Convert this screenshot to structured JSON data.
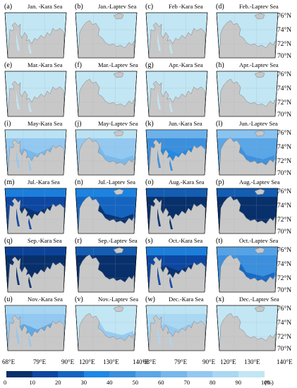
{
  "figure": {
    "panels": [
      {
        "label": "(a)",
        "title": "Jan. -Kara Sea",
        "sea": "kara",
        "ice_level": 1.0
      },
      {
        "label": "(b)",
        "title": "Jan.-Laptev Sea",
        "sea": "laptev",
        "ice_level": 1.0
      },
      {
        "label": "(c)",
        "title": "Feb -Kara Sea",
        "sea": "kara",
        "ice_level": 1.0
      },
      {
        "label": "(d)",
        "title": "Feb.-Laptev Sea",
        "sea": "laptev",
        "ice_level": 1.0
      },
      {
        "label": "(e)",
        "title": "Mar.-Kara Sea",
        "sea": "kara",
        "ice_level": 0.98
      },
      {
        "label": "(f)",
        "title": "Mar.-Laptev Sea",
        "sea": "laptev",
        "ice_level": 1.0
      },
      {
        "label": "(g)",
        "title": "Apr.-Kara Sea",
        "sea": "kara",
        "ice_level": 0.97
      },
      {
        "label": "(h)",
        "title": "Apr.-Laptev Sea",
        "sea": "laptev",
        "ice_level": 0.95
      },
      {
        "label": "(i)",
        "title": "May-Kara Sea",
        "sea": "kara",
        "ice_level": 0.75
      },
      {
        "label": "(j)",
        "title": "May-Laptev Sea",
        "sea": "laptev",
        "ice_level": 0.78
      },
      {
        "label": "(k)",
        "title": "Jun.-Kara Sea",
        "sea": "kara",
        "ice_level": 0.45
      },
      {
        "label": "(l)",
        "title": "Jun.-Laptev Sea",
        "sea": "laptev",
        "ice_level": 0.55
      },
      {
        "label": "(m)",
        "title": "Jul.-Kara Sea",
        "sea": "kara",
        "ice_level": 0.18
      },
      {
        "label": "(n)",
        "title": "Jul.-Laptev Sea",
        "sea": "laptev",
        "ice_level": 0.22
      },
      {
        "label": "(o)",
        "title": "Aug.-Kara Sea",
        "sea": "kara",
        "ice_level": 0.05
      },
      {
        "label": "(p)",
        "title": "Aug.-Laptev Sea",
        "sea": "laptev",
        "ice_level": 0.06
      },
      {
        "label": "(q)",
        "title": "Sep.-Kara Sea",
        "sea": "kara",
        "ice_level": 0.03
      },
      {
        "label": "(r)",
        "title": "Sep.-Laptev Sea",
        "sea": "laptev",
        "ice_level": 0.05
      },
      {
        "label": "(s)",
        "title": "Oct.-Kara Sea",
        "sea": "kara",
        "ice_level": 0.15
      },
      {
        "label": "(t)",
        "title": "Oct.-Laptev Sea",
        "sea": "laptev",
        "ice_level": 0.4
      },
      {
        "label": "(u)",
        "title": "Nov.-Kara Sea",
        "sea": "kara",
        "ice_level": 0.7
      },
      {
        "label": "(v)",
        "title": "Nov.-Laptev Sea",
        "sea": "laptev",
        "ice_level": 0.9
      },
      {
        "label": "(w)",
        "title": "Dec.-Kara Sea",
        "sea": "kara",
        "ice_level": 0.85
      },
      {
        "label": "(x)",
        "title": "Dec.-Laptev Sea",
        "sea": "laptev",
        "ice_level": 0.97
      }
    ],
    "lat_labels": [
      "76°N",
      "74°N",
      "72°N",
      "70°N"
    ],
    "lon_labels": [
      "68°E",
      "79°E",
      "90°E",
      "120°E",
      "130°E",
      "140°E",
      "68°E",
      "79°E",
      "90°E",
      "120°E",
      "130°E",
      "140°E"
    ],
    "colorbar": {
      "ticks": [
        "0",
        "10",
        "20",
        "30",
        "40",
        "50",
        "60",
        "70",
        "80",
        "90",
        "100"
      ],
      "unit": "(%)",
      "colors": [
        "#08306b",
        "#0d47a1",
        "#1565c0",
        "#1e88e5",
        "#3b8fdc",
        "#5aa6e6",
        "#76b7ec",
        "#93c8f0",
        "#aad7f2",
        "#c2e6f3"
      ]
    },
    "land_color": "#c8c8c8",
    "land_edge": "#808080"
  }
}
